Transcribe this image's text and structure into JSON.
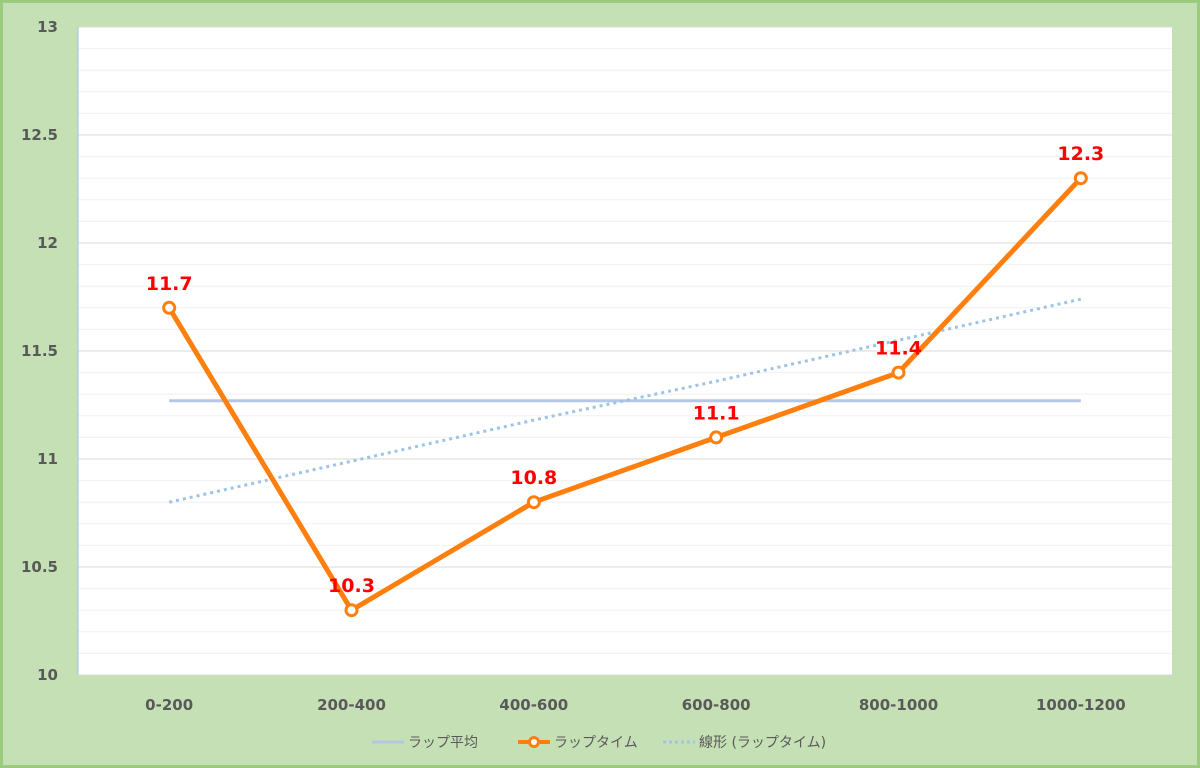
{
  "chart_data": {
    "type": "line",
    "title": "",
    "xlabel": "",
    "ylabel": "",
    "categories": [
      "0-200",
      "200-400",
      "400-600",
      "600-800",
      "800-1000",
      "1000-1200"
    ],
    "ylim": [
      10,
      13
    ],
    "yticks": [
      "10",
      "10.5",
      "11",
      "11.5",
      "12",
      "12.5",
      "13"
    ],
    "grid": true,
    "legend_position": "bottom",
    "series": [
      {
        "name": "ラップ平均",
        "kind": "flat",
        "values": [
          11.27,
          11.27,
          11.27,
          11.27,
          11.27,
          11.27
        ],
        "color": "#b4c7e7"
      },
      {
        "name": "ラップタイム",
        "kind": "line-markers",
        "values": [
          11.7,
          10.3,
          10.8,
          11.1,
          11.4,
          12.3
        ],
        "data_labels": [
          "11.7",
          "10.3",
          "10.8",
          "11.1",
          "11.4",
          "12.3"
        ],
        "color": "#ff7f0e"
      },
      {
        "name": "線形 (ラップタイム)",
        "kind": "trendline",
        "values": [
          10.8,
          10.99,
          11.18,
          11.36,
          11.55,
          11.74
        ],
        "color": "#9dc3e6"
      }
    ],
    "data_label_color": "#ff0000"
  }
}
